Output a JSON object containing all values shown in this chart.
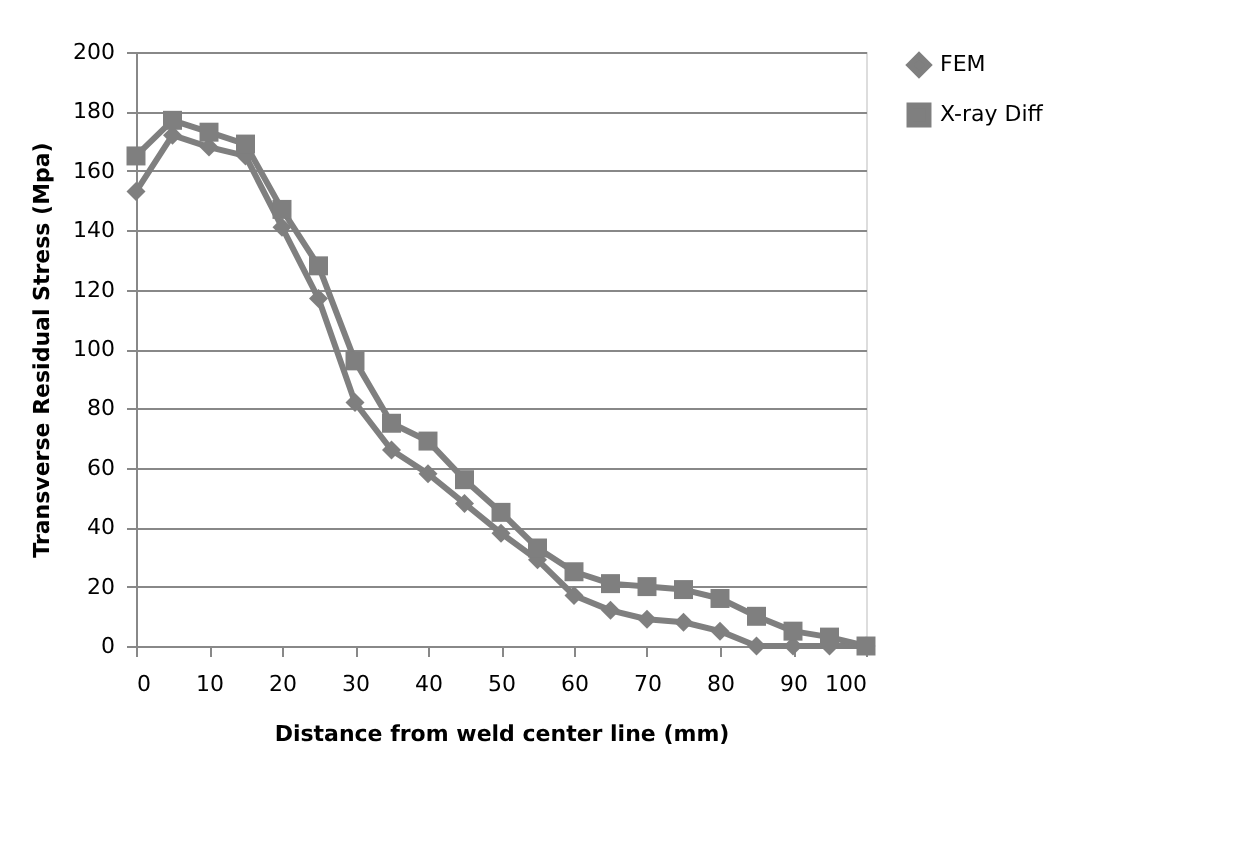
{
  "chart_data": {
    "type": "line",
    "xlabel": "Distance from weld center line (mm)",
    "ylabel": "Transverse Residual Stress (Mpa)",
    "x": [
      0,
      5,
      10,
      15,
      20,
      25,
      30,
      35,
      40,
      45,
      50,
      55,
      60,
      65,
      70,
      75,
      80,
      85,
      90,
      95,
      100
    ],
    "series": [
      {
        "name": "FEM",
        "color": "#7f7f7f",
        "marker": "diamond",
        "values": [
          153,
          172,
          168,
          165,
          141,
          117,
          82,
          66,
          58,
          48,
          38,
          29,
          17,
          12,
          9,
          8,
          5,
          0,
          0,
          0,
          0
        ]
      },
      {
        "name": "X-ray Diff",
        "color": "#7f7f7f",
        "marker": "square",
        "values": [
          165,
          177,
          173,
          169,
          147,
          128,
          96,
          75,
          69,
          56,
          45,
          33,
          25,
          21,
          20,
          19,
          16,
          10,
          5,
          3,
          0
        ]
      }
    ],
    "xlim": [
      0,
      100
    ],
    "xticks": [
      0,
      10,
      20,
      30,
      40,
      50,
      60,
      70,
      80,
      90,
      100
    ],
    "ylim": [
      0,
      200
    ],
    "yticks": [
      0,
      20,
      40,
      60,
      80,
      100,
      120,
      140,
      160,
      180,
      200
    ],
    "grid": "y",
    "legend": "right",
    "line_style": "solid"
  }
}
